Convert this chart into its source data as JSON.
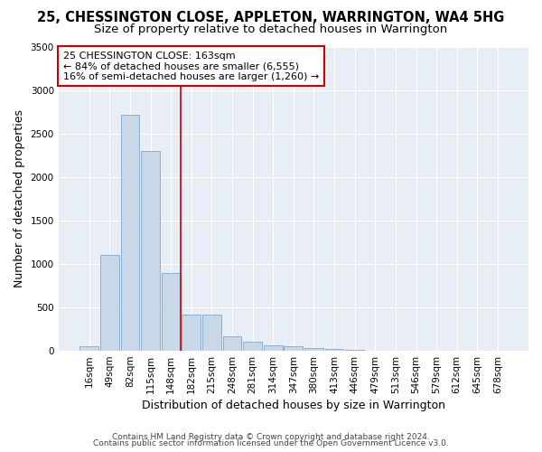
{
  "title": "25, CHESSINGTON CLOSE, APPLETON, WARRINGTON, WA4 5HG",
  "subtitle": "Size of property relative to detached houses in Warrington",
  "xlabel": "Distribution of detached houses by size in Warrington",
  "ylabel": "Number of detached properties",
  "bar_labels": [
    "16sqm",
    "49sqm",
    "82sqm",
    "115sqm",
    "148sqm",
    "182sqm",
    "215sqm",
    "248sqm",
    "281sqm",
    "314sqm",
    "347sqm",
    "380sqm",
    "413sqm",
    "446sqm",
    "479sqm",
    "513sqm",
    "546sqm",
    "579sqm",
    "612sqm",
    "645sqm",
    "678sqm"
  ],
  "bar_values": [
    50,
    1100,
    2720,
    2300,
    900,
    420,
    420,
    165,
    100,
    60,
    50,
    30,
    20,
    10,
    5,
    3,
    2,
    1,
    1,
    0,
    0
  ],
  "bar_color": "#c8d8e8",
  "bar_edge_color": "#7fa8c8",
  "ylim": [
    0,
    3500
  ],
  "yticks": [
    0,
    500,
    1000,
    1500,
    2000,
    2500,
    3000,
    3500
  ],
  "property_line_x": 4.5,
  "annotation_line1": "25 CHESSINGTON CLOSE: 163sqm",
  "annotation_line2": "← 84% of detached houses are smaller (6,555)",
  "annotation_line3": "16% of semi-detached houses are larger (1,260) →",
  "footer1": "Contains HM Land Registry data © Crown copyright and database right 2024.",
  "footer2": "Contains public sector information licensed under the Open Government Licence v3.0.",
  "bg_color": "#ffffff",
  "plot_bg_color": "#e8eef5",
  "grid_color": "#ffffff",
  "annotation_box_color": "#ffffff",
  "annotation_border_color": "#cc0000",
  "property_line_color": "#cc0000",
  "title_fontsize": 10.5,
  "subtitle_fontsize": 9.5,
  "axis_label_fontsize": 9,
  "tick_fontsize": 7.5,
  "annotation_fontsize": 8,
  "footer_fontsize": 6.5
}
